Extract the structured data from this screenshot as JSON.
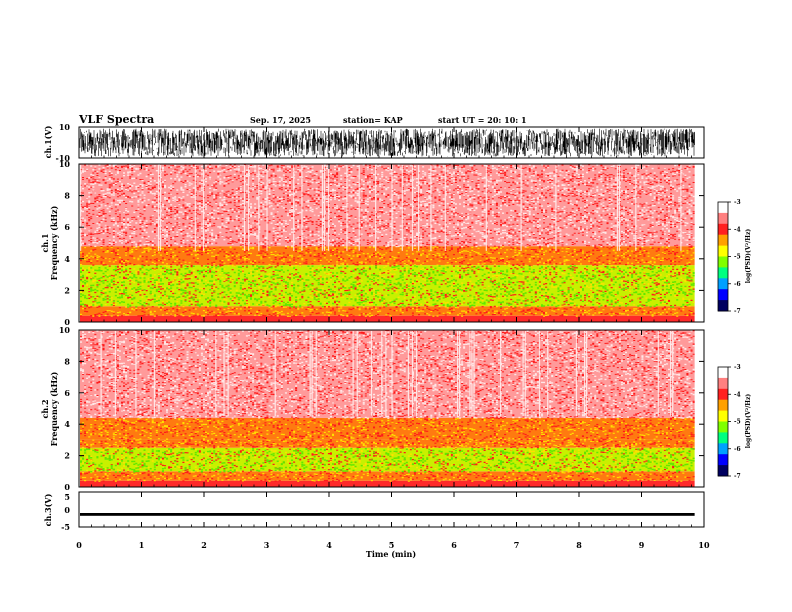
{
  "header": {
    "title": "VLF Spectra",
    "date": "Sep. 17, 2025",
    "station": "station= KAP",
    "start": "start  UT =   20: 10: 1"
  },
  "chart_data": [
    {
      "type": "line",
      "name": "ch1-waveform",
      "ylabel": "ch.1(V)",
      "ylim": [
        -10,
        10
      ],
      "yticks": [
        "10",
        "-10"
      ],
      "xlim": [
        0,
        10
      ],
      "data_end_min": 9.85,
      "description_values": {
        "typical_min": -9,
        "typical_max": 9
      }
    },
    {
      "type": "heatmap",
      "name": "ch1-spectrogram",
      "ylabel_top": "ch.1",
      "ylabel": "Frequency (kHz)",
      "ylim": [
        0,
        10
      ],
      "yticks": [
        "0",
        "2",
        "4",
        "6",
        "8",
        "10"
      ],
      "xlim": [
        0,
        10
      ],
      "data_end_min": 9.85,
      "bands": [
        {
          "f0": 0.0,
          "f1": 0.4,
          "level": "red"
        },
        {
          "f0": 0.4,
          "f1": 1.0,
          "level": "orange"
        },
        {
          "f0": 1.0,
          "f1": 2.5,
          "level": "yellow-green"
        },
        {
          "f0": 2.5,
          "f1": 3.6,
          "level": "yellow-green"
        },
        {
          "f0": 3.6,
          "f1": 4.8,
          "level": "orange"
        },
        {
          "f0": 4.8,
          "f1": 10.0,
          "level": "light-red"
        }
      ]
    },
    {
      "type": "heatmap",
      "name": "ch2-spectrogram",
      "ylabel_top": "ch.2",
      "ylabel": "Frequency (kHz)",
      "ylim": [
        0,
        10
      ],
      "yticks": [
        "0",
        "2",
        "4",
        "6",
        "8",
        "10"
      ],
      "xlim": [
        0,
        10
      ],
      "data_end_min": 9.85,
      "bands": [
        {
          "f0": 0.0,
          "f1": 0.4,
          "level": "red"
        },
        {
          "f0": 0.4,
          "f1": 1.0,
          "level": "orange"
        },
        {
          "f0": 1.0,
          "f1": 2.5,
          "level": "yellow-green"
        },
        {
          "f0": 2.5,
          "f1": 3.0,
          "level": "orange"
        },
        {
          "f0": 3.0,
          "f1": 4.4,
          "level": "orange"
        },
        {
          "f0": 4.4,
          "f1": 10.0,
          "level": "light-red"
        }
      ]
    },
    {
      "type": "line",
      "name": "ch3-waveform",
      "ylabel": "ch.3(V)",
      "ylim": [
        -5,
        5
      ],
      "yticks": [
        "5",
        "0",
        "-5"
      ],
      "xlim": [
        0,
        10
      ],
      "data_end_min": 9.85,
      "description_values": {
        "typical_min": -1.8,
        "typical_max": -1.0
      }
    }
  ],
  "xaxis": {
    "label": "Time (min)",
    "ticks": [
      "0",
      "1",
      "2",
      "3",
      "4",
      "5",
      "6",
      "7",
      "8",
      "9",
      "10"
    ]
  },
  "colorbar": {
    "label": "log(PSD)(V²/Hz)",
    "ticks": [
      "-3",
      "-4",
      "-5",
      "-6",
      "-7"
    ],
    "range": [
      -7,
      -3
    ],
    "colors": [
      "#000060",
      "#0000ff",
      "#00a0ff",
      "#00ff80",
      "#80ff00",
      "#ffff00",
      "#ffa000",
      "#ff2020",
      "#ff8080",
      "#ffffff"
    ]
  }
}
